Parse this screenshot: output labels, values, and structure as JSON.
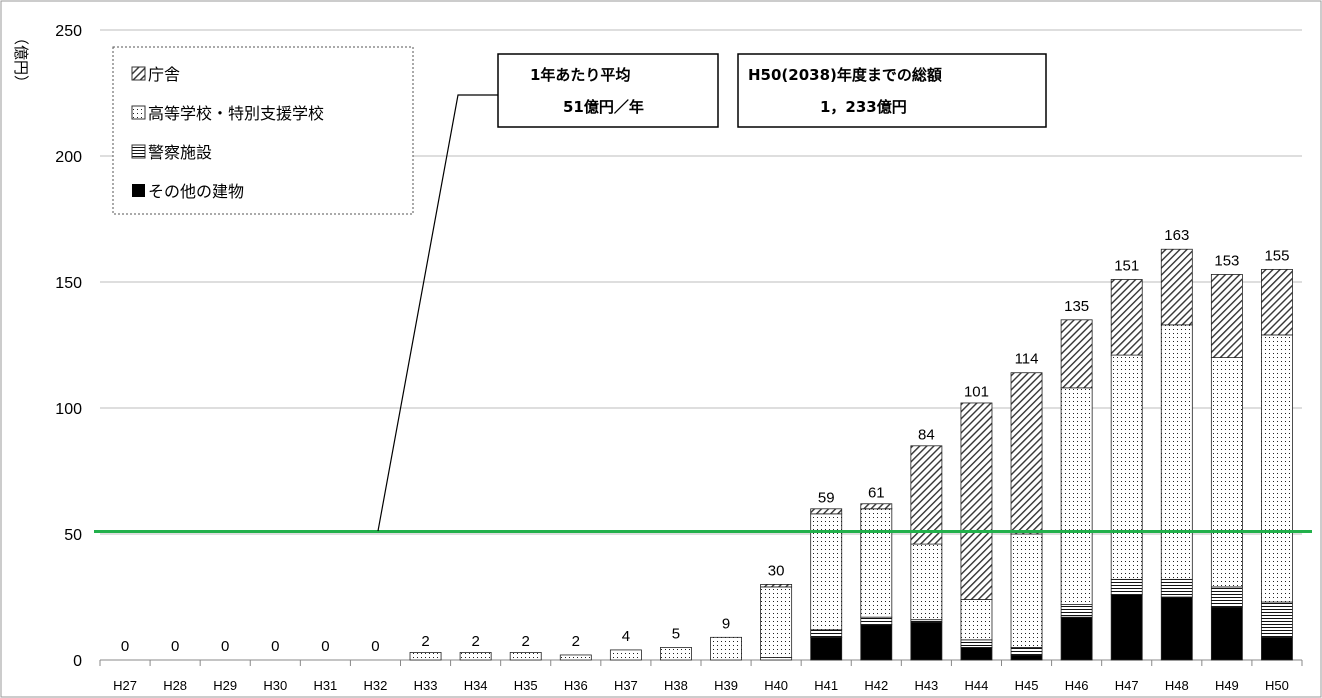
{
  "chart_data": {
    "type": "bar",
    "stacked": true,
    "y_unit_label": "（億円）",
    "ylim": [
      0,
      250
    ],
    "yticks": [
      0,
      50,
      100,
      150,
      200,
      250
    ],
    "categories": [
      "H27",
      "H28",
      "H29",
      "H30",
      "H31",
      "H32",
      "H33",
      "H34",
      "H35",
      "H36",
      "H37",
      "H38",
      "H39",
      "H40",
      "H41",
      "H42",
      "H43",
      "H44",
      "H45",
      "H46",
      "H47",
      "H48",
      "H49",
      "H50"
    ],
    "totals": [
      0,
      0,
      0,
      0,
      0,
      0,
      2,
      2,
      2,
      2,
      4,
      5,
      9,
      30,
      59,
      61,
      84,
      101,
      114,
      135,
      151,
      163,
      153,
      155
    ],
    "series": [
      {
        "name": "その他の建物",
        "legend_glyph": "■",
        "pattern": "solid",
        "values": [
          0,
          0,
          0,
          0,
          0,
          0,
          0,
          0,
          0,
          0,
          0,
          0,
          0,
          0,
          9,
          14,
          15,
          5,
          2,
          17,
          26,
          25,
          21,
          9
        ]
      },
      {
        "name": "警察施設",
        "legend_glyph": "▤",
        "pattern": "hlines",
        "values": [
          0,
          0,
          0,
          0,
          0,
          0,
          0,
          0,
          0,
          0,
          0,
          0,
          0,
          1,
          3,
          3,
          1,
          3,
          3,
          5,
          6,
          7,
          8,
          14
        ]
      },
      {
        "name": "高等学校・特別支援学校",
        "legend_glyph": "▨",
        "pattern": "dots",
        "values": [
          0,
          0,
          0,
          0,
          0,
          0,
          3,
          3,
          3,
          2,
          4,
          5,
          9,
          28,
          46,
          43,
          30,
          16,
          45,
          86,
          89,
          101,
          91,
          106
        ]
      },
      {
        "name": "庁舎",
        "legend_glyph": "▨",
        "pattern": "diag",
        "values": [
          0,
          0,
          0,
          0,
          0,
          0,
          0,
          0,
          0,
          0,
          0,
          0,
          0,
          1,
          2,
          2,
          39,
          78,
          64,
          27,
          30,
          30,
          33,
          26
        ]
      }
    ],
    "average_line": {
      "value": 51,
      "color": "#22b04b"
    },
    "legend_order": [
      "庁舎",
      "高等学校・特別支援学校",
      "警察施設",
      "その他の建物"
    ],
    "legend_glyphs": [
      "▨",
      "▨",
      "▤",
      "■"
    ],
    "callouts": [
      {
        "line1": "1年あたり平均",
        "line2": "51億円／年"
      },
      {
        "line1": "H50(2038)年度までの総額",
        "line2": "1，233億円"
      }
    ],
    "grid": true
  }
}
